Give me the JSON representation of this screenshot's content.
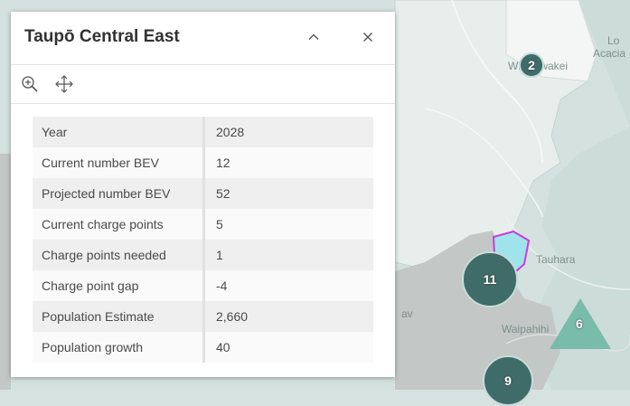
{
  "popup": {
    "title": "Taupō Central East",
    "collapse_icon": "chevron-up-icon",
    "close_icon": "close-icon",
    "tools": [
      "zoom-to-icon",
      "move-icon"
    ],
    "attributes": [
      {
        "label": "Year",
        "value": "2028"
      },
      {
        "label": "Current number BEV",
        "value": "12"
      },
      {
        "label": "Projected number BEV",
        "value": "52"
      },
      {
        "label": "Current charge points",
        "value": "5"
      },
      {
        "label": "Charge points needed",
        "value": "1"
      },
      {
        "label": "Charge point gap",
        "value": "-4"
      },
      {
        "label": "Population Estimate",
        "value": "2,660"
      },
      {
        "label": "Population growth",
        "value": "40"
      }
    ]
  },
  "map": {
    "labels": {
      "wharewaka": "Wharewakei",
      "tauhara": "Tauhara",
      "waipahihi": "Waipahihi",
      "corner_top": "Lo",
      "corner_top2": "Acacia",
      "left_fragment": "av"
    },
    "clusters": {
      "c1": "2",
      "c2": "11",
      "c3": "9",
      "triangle": "6"
    },
    "colors": {
      "cluster_fill": "#3f6b69",
      "triangle_fill": "#6fb8a3",
      "highlight_stroke": "#c93ce0",
      "highlight_fill": "#9fe4ea"
    }
  }
}
